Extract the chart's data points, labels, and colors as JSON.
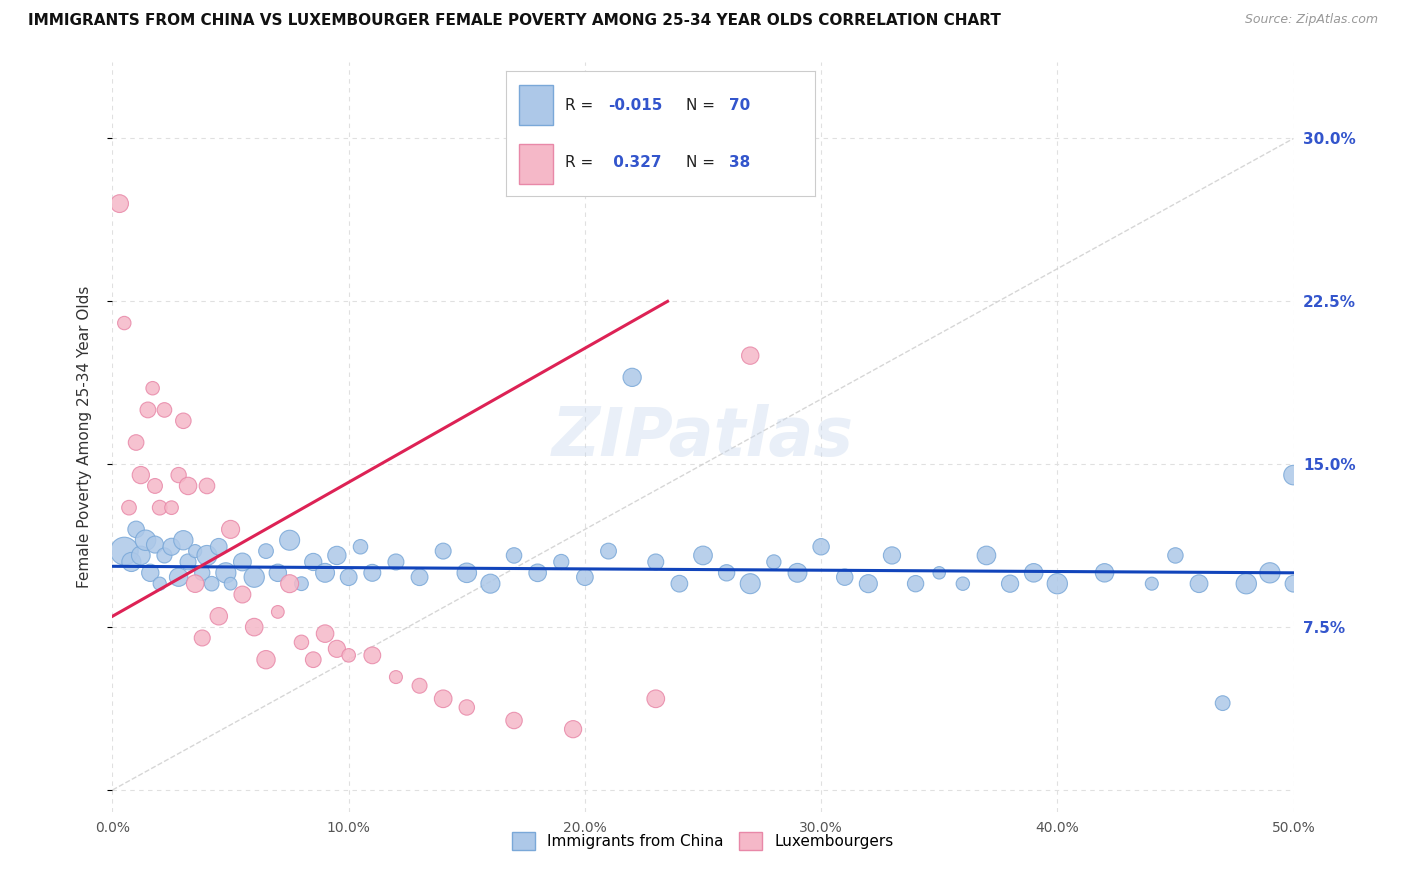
{
  "title": "IMMIGRANTS FROM CHINA VS LUXEMBOURGER FEMALE POVERTY AMONG 25-34 YEAR OLDS CORRELATION CHART",
  "source": "Source: ZipAtlas.com",
  "ylabel": "Female Poverty Among 25-34 Year Olds",
  "xlim": [
    0.0,
    0.5
  ],
  "ylim": [
    -0.01,
    0.335
  ],
  "xticks": [
    0.0,
    0.1,
    0.2,
    0.3,
    0.4,
    0.5
  ],
  "xtick_labels": [
    "0.0%",
    "10.0%",
    "20.0%",
    "30.0%",
    "40.0%",
    "50.0%"
  ],
  "yticks": [
    0.0,
    0.075,
    0.15,
    0.225,
    0.3
  ],
  "ytick_labels": [
    "",
    "7.5%",
    "15.0%",
    "22.5%",
    "30.0%"
  ],
  "blue_color": "#adc8e8",
  "pink_color": "#f5b8c8",
  "blue_edge": "#7aa8d8",
  "pink_edge": "#e888a8",
  "blue_line_color": "#1144bb",
  "pink_line_color": "#dd2255",
  "ref_line_color": "#cccccc",
  "grid_color": "#e0e0e0",
  "grid_dash": [
    4,
    4
  ],
  "R_blue": -0.015,
  "N_blue": 70,
  "R_pink": 0.327,
  "N_pink": 38,
  "watermark": "ZIPatlas",
  "blue_scatter_x": [
    0.005,
    0.008,
    0.01,
    0.012,
    0.014,
    0.016,
    0.018,
    0.02,
    0.022,
    0.025,
    0.028,
    0.03,
    0.032,
    0.035,
    0.038,
    0.04,
    0.042,
    0.045,
    0.048,
    0.05,
    0.055,
    0.06,
    0.065,
    0.07,
    0.075,
    0.08,
    0.085,
    0.09,
    0.095,
    0.1,
    0.105,
    0.11,
    0.12,
    0.13,
    0.14,
    0.15,
    0.16,
    0.17,
    0.18,
    0.19,
    0.2,
    0.21,
    0.22,
    0.23,
    0.24,
    0.25,
    0.26,
    0.27,
    0.28,
    0.29,
    0.3,
    0.31,
    0.32,
    0.33,
    0.34,
    0.35,
    0.36,
    0.37,
    0.38,
    0.39,
    0.4,
    0.42,
    0.44,
    0.45,
    0.46,
    0.47,
    0.48,
    0.49,
    0.5,
    0.5
  ],
  "blue_scatter_y": [
    0.11,
    0.105,
    0.12,
    0.108,
    0.115,
    0.1,
    0.113,
    0.095,
    0.108,
    0.112,
    0.098,
    0.115,
    0.105,
    0.11,
    0.1,
    0.108,
    0.095,
    0.112,
    0.1,
    0.095,
    0.105,
    0.098,
    0.11,
    0.1,
    0.115,
    0.095,
    0.105,
    0.1,
    0.108,
    0.098,
    0.112,
    0.1,
    0.105,
    0.098,
    0.11,
    0.1,
    0.095,
    0.108,
    0.1,
    0.105,
    0.098,
    0.11,
    0.19,
    0.105,
    0.095,
    0.108,
    0.1,
    0.095,
    0.105,
    0.1,
    0.112,
    0.098,
    0.095,
    0.108,
    0.095,
    0.1,
    0.095,
    0.108,
    0.095,
    0.1,
    0.095,
    0.1,
    0.095,
    0.108,
    0.095,
    0.04,
    0.095,
    0.1,
    0.145,
    0.095
  ],
  "pink_scatter_x": [
    0.003,
    0.005,
    0.007,
    0.01,
    0.012,
    0.015,
    0.017,
    0.018,
    0.02,
    0.022,
    0.025,
    0.028,
    0.03,
    0.032,
    0.035,
    0.038,
    0.04,
    0.045,
    0.05,
    0.055,
    0.06,
    0.065,
    0.07,
    0.075,
    0.08,
    0.085,
    0.09,
    0.095,
    0.1,
    0.11,
    0.12,
    0.13,
    0.14,
    0.15,
    0.17,
    0.195,
    0.23,
    0.27
  ],
  "pink_scatter_y": [
    0.27,
    0.215,
    0.13,
    0.16,
    0.145,
    0.175,
    0.185,
    0.14,
    0.13,
    0.175,
    0.13,
    0.145,
    0.17,
    0.14,
    0.095,
    0.07,
    0.14,
    0.08,
    0.12,
    0.09,
    0.075,
    0.06,
    0.082,
    0.095,
    0.068,
    0.06,
    0.072,
    0.065,
    0.062,
    0.062,
    0.052,
    0.048,
    0.042,
    0.038,
    0.032,
    0.028,
    0.042,
    0.2
  ],
  "blue_trend_x": [
    0.0,
    0.5
  ],
  "blue_trend_y": [
    0.103,
    0.1
  ],
  "pink_trend_x": [
    0.0,
    0.235
  ],
  "pink_trend_y": [
    0.08,
    0.225
  ]
}
